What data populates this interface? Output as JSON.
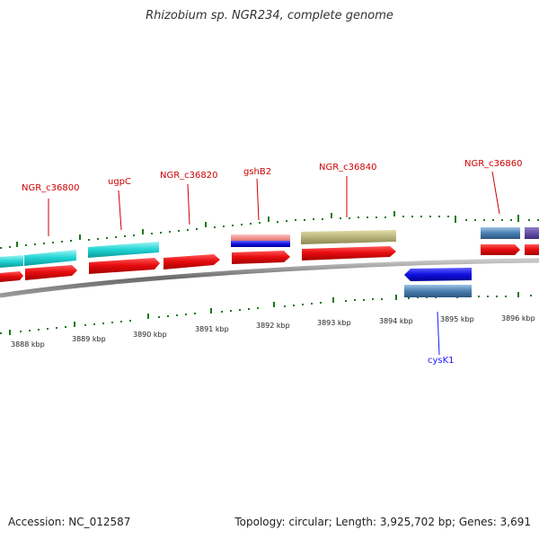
{
  "title": "Rhizobium sp. NGR234, complete genome",
  "accession": "Accession: NC_012587",
  "summary": "Topology: circular; Length: 3,925,702 bp; Genes: 3,691",
  "gene_labels": [
    {
      "id": "NGR_c36800",
      "text": "NGR_c36800"
    },
    {
      "id": "ugpC",
      "text": "ugpC"
    },
    {
      "id": "NGR_c36820",
      "text": "NGR_c36820"
    },
    {
      "id": "gshB2",
      "text": "gshB2"
    },
    {
      "id": "NGR_c36840",
      "text": "NGR_c36840"
    },
    {
      "id": "NGR_c36860",
      "text": "NGR_c36860"
    },
    {
      "id": "cysK1",
      "text": "cysK1"
    }
  ],
  "kbp_labels": [
    "3888 kbp",
    "3889 kbp",
    "3890 kbp",
    "3891 kbp",
    "3892 kbp",
    "3893 kbp",
    "3894 kbp",
    "3895 kbp",
    "3896 kbp"
  ],
  "colors": {
    "cds": "#e8101a",
    "cyan_feature": "#1fd3d3",
    "olive_feature": "#b8b37a",
    "steelblue_feature": "#4a7fb0",
    "pink_feature": "#e88080",
    "blue_feature": "#1010e0",
    "purple_feature": "#5a3e9a",
    "backbone": "#808080",
    "tick": "#1a7a1a",
    "label_red": "#cc0000",
    "label_blue": "#1a1aff"
  }
}
